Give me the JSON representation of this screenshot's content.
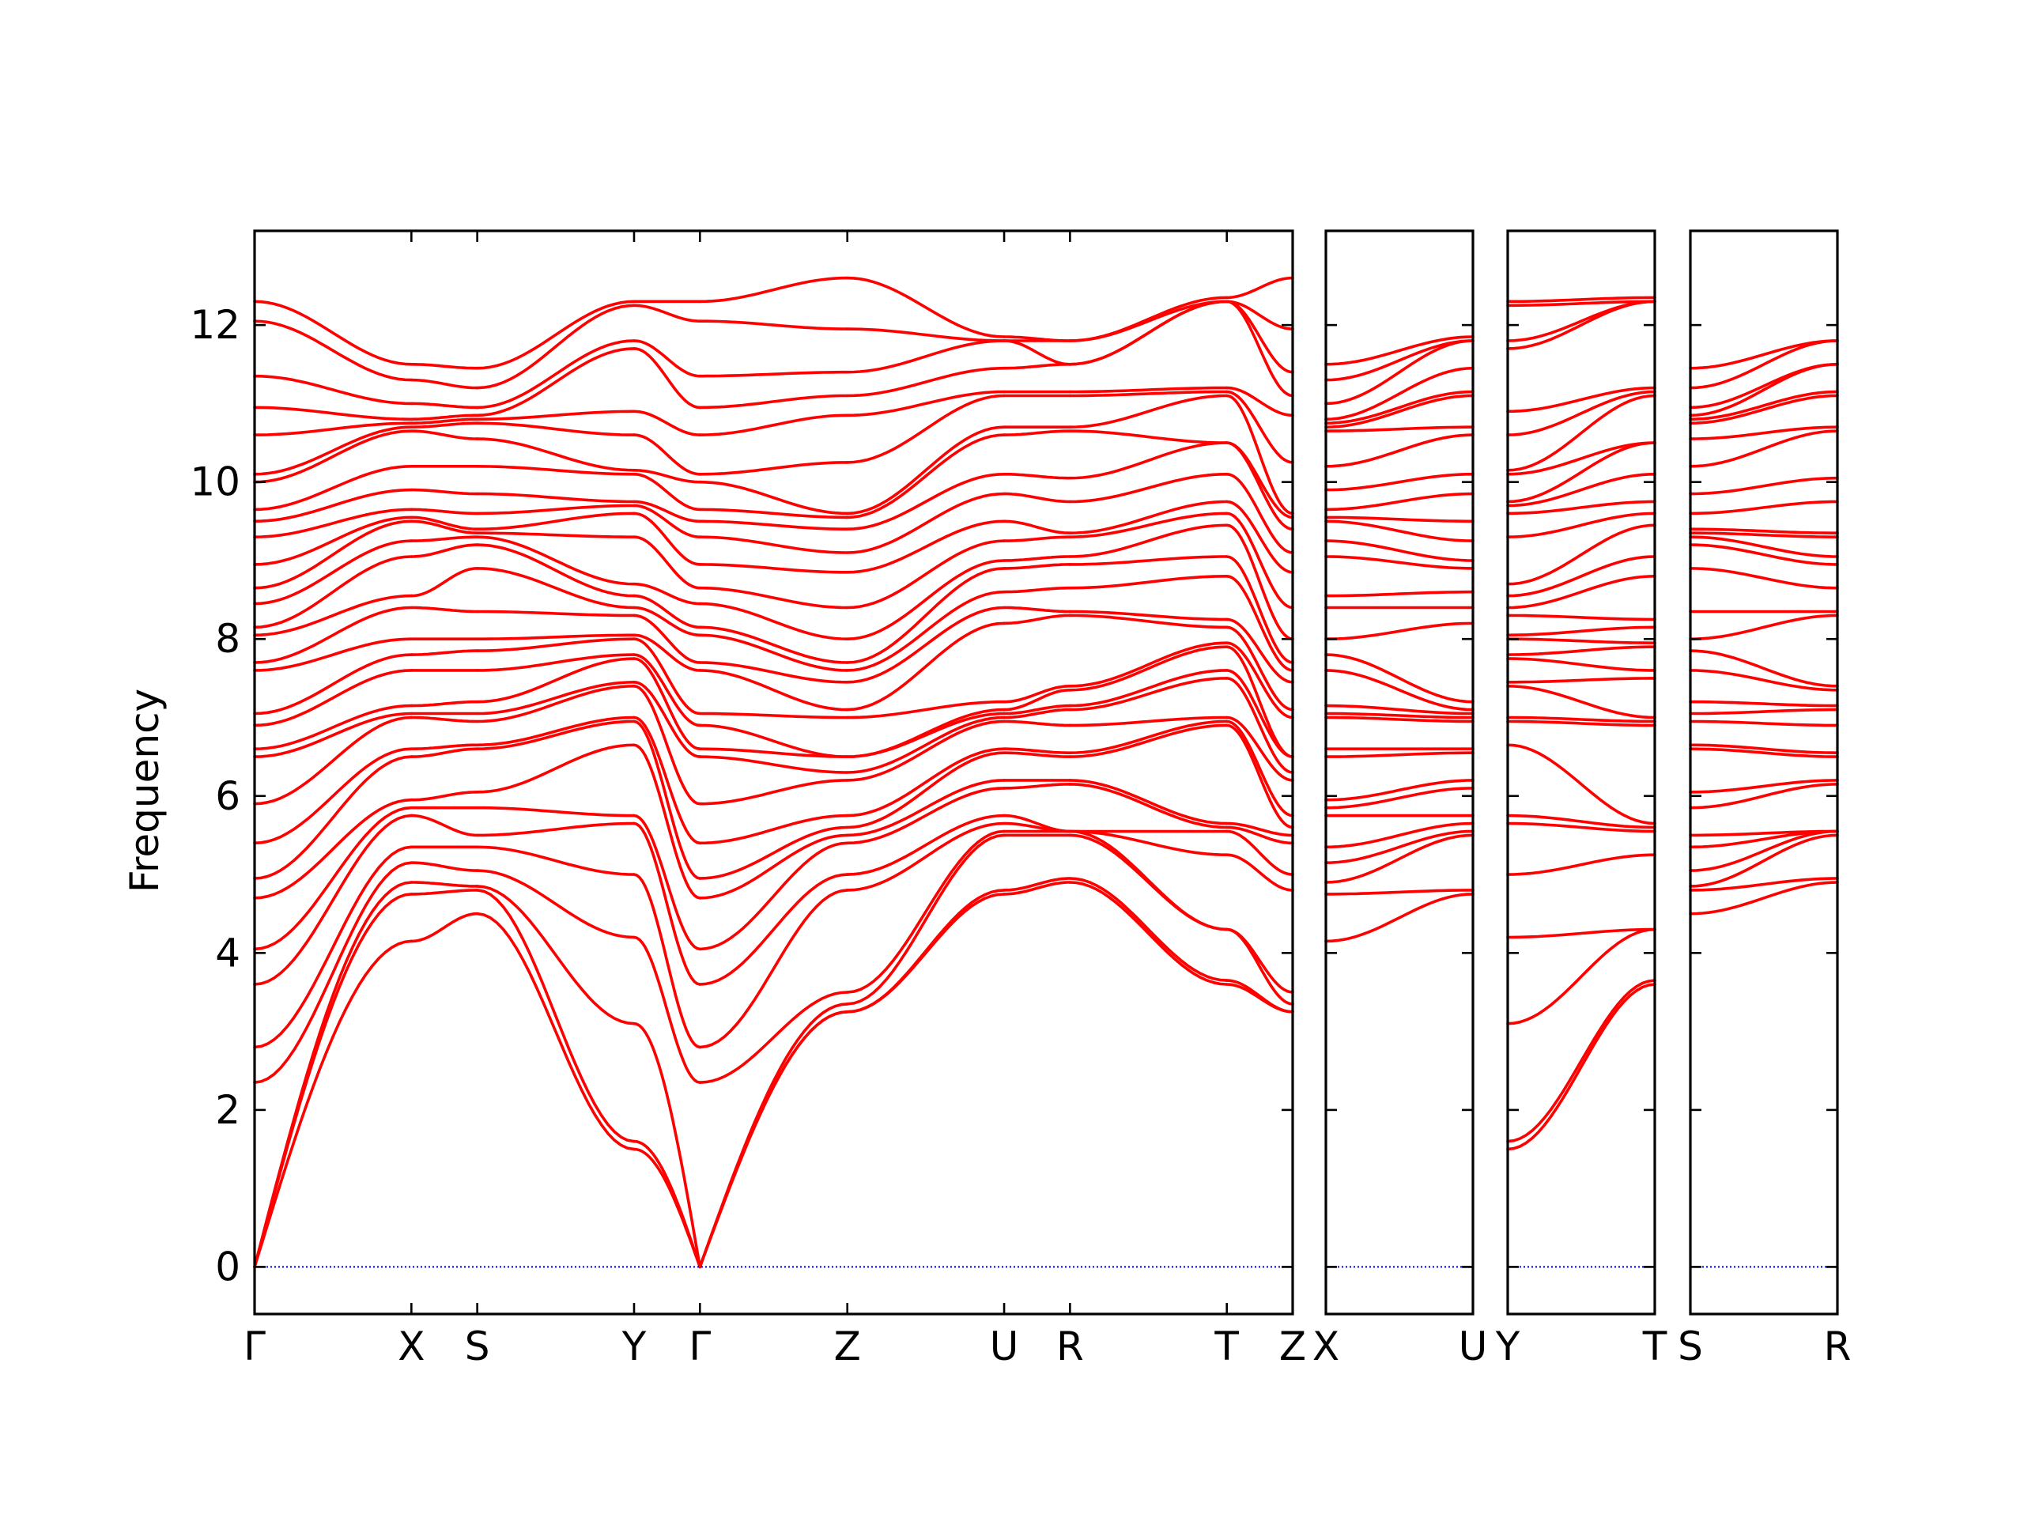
{
  "chart_data": {
    "type": "line",
    "title": "",
    "ylabel": "Frequency",
    "ylim": [
      -0.6,
      13.2
    ],
    "yticks": [
      0,
      2,
      4,
      6,
      8,
      10,
      12
    ],
    "line_color": "#ff0000",
    "zero_line_color": "#0000cc",
    "panels": [
      {
        "id": "p1",
        "segments": [
          {
            "start": "Γ",
            "end": "X",
            "length": 1.0
          },
          {
            "start": "X",
            "end": "S",
            "length": 0.42
          },
          {
            "start": "S",
            "end": "Y",
            "length": 1.0
          },
          {
            "start": "Y",
            "end": "Γ",
            "length": 0.42
          },
          {
            "start": "Γ",
            "end": "Z",
            "length": 0.94
          },
          {
            "start": "Z",
            "end": "U",
            "length": 1.0
          },
          {
            "start": "U",
            "end": "R",
            "length": 0.42
          },
          {
            "start": "R",
            "end": "T",
            "length": 1.0
          },
          {
            "start": "T",
            "end": "Z",
            "length": 0.42
          }
        ],
        "tick_labels": [
          "Γ",
          "X",
          "S",
          "Y",
          "Γ",
          "Z",
          "U",
          "R",
          "T",
          "Z"
        ]
      },
      {
        "id": "p2",
        "segments": [
          {
            "start": "X",
            "end": "U",
            "length": 1.0
          }
        ],
        "tick_labels": [
          "X",
          "U"
        ]
      },
      {
        "id": "p3",
        "segments": [
          {
            "start": "Y",
            "end": "T",
            "length": 1.0
          }
        ],
        "tick_labels": [
          "Y",
          "T"
        ]
      },
      {
        "id": "p4",
        "segments": [
          {
            "start": "S",
            "end": "R",
            "length": 1.0
          }
        ],
        "tick_labels": [
          "S",
          "R"
        ]
      }
    ],
    "special_point_frequencies": {
      "Γ": [
        0,
        0,
        0,
        2.35,
        2.8,
        3.6,
        4.05,
        4.7,
        4.95,
        5.4,
        5.9,
        6.5,
        6.6,
        6.9,
        7.05,
        7.6,
        7.7,
        8.05,
        8.15,
        8.45,
        8.65,
        8.95,
        9.3,
        9.5,
        9.65,
        10.0,
        10.1,
        10.6,
        10.95,
        11.35,
        12.05,
        12.3
      ],
      "X": [
        4.15,
        4.75,
        4.9,
        5.15,
        5.35,
        5.75,
        5.85,
        5.95,
        6.5,
        6.6,
        7.0,
        7.05,
        7.15,
        7.6,
        7.8,
        8.0,
        8.4,
        8.55,
        9.05,
        9.25,
        9.5,
        9.55,
        9.65,
        9.9,
        10.2,
        10.65,
        10.7,
        10.75,
        10.8,
        11.0,
        11.3,
        11.5
      ],
      "S": [
        4.5,
        4.8,
        4.85,
        5.05,
        5.35,
        5.5,
        5.85,
        6.05,
        6.6,
        6.65,
        6.95,
        7.05,
        7.2,
        7.6,
        7.85,
        8.0,
        8.35,
        8.9,
        9.2,
        9.3,
        9.35,
        9.4,
        9.6,
        9.85,
        10.2,
        10.55,
        10.75,
        10.8,
        10.85,
        10.95,
        11.2,
        11.45
      ],
      "Y": [
        1.5,
        1.6,
        3.1,
        4.2,
        5.0,
        5.65,
        5.75,
        6.65,
        6.95,
        7.0,
        7.4,
        7.45,
        7.75,
        7.8,
        8.0,
        8.05,
        8.3,
        8.4,
        8.55,
        8.7,
        9.3,
        9.6,
        9.7,
        9.75,
        10.1,
        10.15,
        10.6,
        10.9,
        11.7,
        11.8,
        12.25,
        12.3
      ],
      "Z": [
        3.25,
        3.25,
        3.35,
        3.5,
        4.8,
        5.0,
        5.4,
        5.5,
        5.6,
        5.75,
        6.2,
        6.3,
        6.5,
        6.5,
        7.0,
        7.1,
        7.45,
        7.6,
        7.7,
        8.0,
        8.4,
        8.85,
        9.1,
        9.4,
        9.55,
        9.6,
        10.25,
        10.85,
        11.1,
        11.4,
        11.95,
        12.6
      ],
      "U": [
        4.75,
        4.8,
        5.5,
        5.55,
        5.65,
        5.75,
        6.1,
        6.2,
        6.55,
        6.6,
        6.95,
        7.0,
        7.05,
        7.1,
        7.2,
        8.2,
        8.4,
        8.6,
        8.9,
        9.0,
        9.25,
        9.5,
        9.85,
        10.1,
        10.6,
        10.7,
        11.1,
        11.15,
        11.45,
        11.8,
        11.8,
        11.85
      ],
      "R": [
        4.9,
        4.95,
        5.5,
        5.55,
        5.55,
        5.55,
        6.15,
        6.2,
        6.5,
        6.55,
        6.9,
        7.1,
        7.15,
        7.35,
        7.4,
        8.3,
        8.35,
        8.65,
        8.95,
        9.05,
        9.3,
        9.35,
        9.75,
        10.05,
        10.65,
        10.7,
        11.1,
        11.15,
        11.5,
        11.5,
        11.8,
        11.8
      ],
      "T": [
        3.6,
        3.65,
        4.3,
        4.3,
        5.25,
        5.55,
        5.6,
        5.65,
        6.9,
        6.95,
        7.0,
        7.5,
        7.6,
        7.9,
        7.95,
        8.15,
        8.25,
        8.8,
        9.05,
        9.45,
        9.6,
        9.75,
        10.1,
        10.5,
        10.5,
        11.1,
        11.15,
        11.2,
        12.3,
        12.3,
        12.3,
        12.35
      ]
    }
  }
}
